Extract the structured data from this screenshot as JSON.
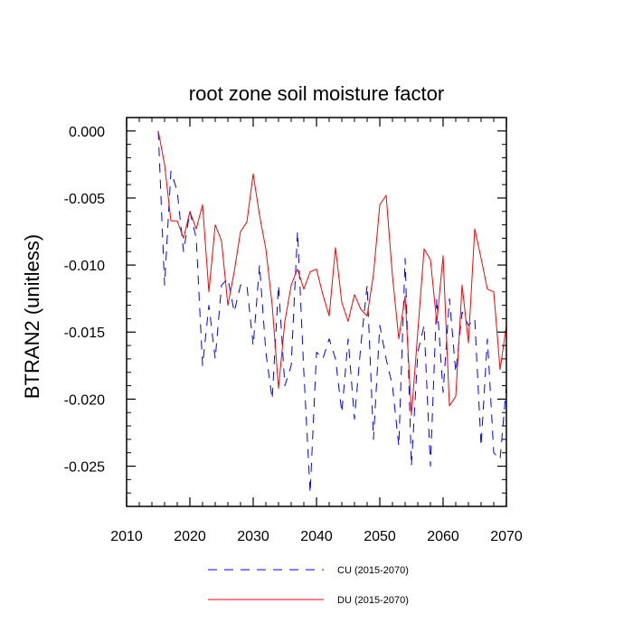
{
  "chart_data": {
    "type": "line",
    "title": "root zone soil moisture factor",
    "xlabel": "",
    "ylabel": "BTRAN2  (unitless)",
    "xlim": [
      2010,
      2070
    ],
    "ylim": [
      -0.028,
      0.001
    ],
    "xticks": [
      2010,
      2020,
      2030,
      2040,
      2050,
      2060,
      2070
    ],
    "xtick_labels": [
      "2010",
      "2020",
      "2030",
      "2040",
      "2050",
      "2060",
      "2070"
    ],
    "xminor_step": 2,
    "yticks": [
      0.0,
      -0.005,
      -0.01,
      -0.015,
      -0.02,
      -0.025
    ],
    "ytick_labels": [
      "0.000",
      "-0.005",
      "-0.010",
      "-0.015",
      "-0.020",
      "-0.025"
    ],
    "yminor_step": 0.001,
    "grid": false,
    "legend_position": "bottom-center",
    "series": [
      {
        "name": "CU (2015-2070)",
        "color": "#0000ff",
        "style": "dashed",
        "x": [
          2015,
          2016,
          2017,
          2018,
          2019,
          2020,
          2021,
          2022,
          2023,
          2024,
          2025,
          2026,
          2027,
          2028,
          2029,
          2030,
          2031,
          2032,
          2033,
          2034,
          2035,
          2036,
          2037,
          2038,
          2039,
          2040,
          2041,
          2042,
          2043,
          2044,
          2045,
          2046,
          2047,
          2048,
          2049,
          2050,
          2051,
          2052,
          2053,
          2054,
          2055,
          2056,
          2057,
          2058,
          2059,
          2060,
          2061,
          2062,
          2063,
          2064,
          2065,
          2066,
          2067,
          2068,
          2069,
          2070
        ],
        "values": [
          0.0,
          -0.0115,
          -0.003,
          -0.0045,
          -0.009,
          -0.006,
          -0.008,
          -0.0175,
          -0.013,
          -0.017,
          -0.0115,
          -0.011,
          -0.0135,
          -0.0115,
          -0.0115,
          -0.016,
          -0.01,
          -0.0165,
          -0.02,
          -0.0115,
          -0.019,
          -0.0175,
          -0.0075,
          -0.018,
          -0.027,
          -0.0165,
          -0.017,
          -0.0155,
          -0.017,
          -0.021,
          -0.0155,
          -0.0215,
          -0.016,
          -0.0115,
          -0.023,
          -0.0145,
          -0.017,
          -0.019,
          -0.0235,
          -0.0095,
          -0.025,
          -0.0165,
          -0.0145,
          -0.025,
          -0.0125,
          -0.0195,
          -0.0125,
          -0.018,
          -0.0135,
          -0.0145,
          -0.014,
          -0.0235,
          -0.0155,
          -0.024,
          -0.0245,
          -0.019
        ]
      },
      {
        "name": "DU (2015-2070)",
        "color": "#ff0000",
        "style": "solid",
        "x": [
          2015,
          2016,
          2017,
          2018,
          2019,
          2020,
          2021,
          2022,
          2023,
          2024,
          2025,
          2026,
          2027,
          2028,
          2029,
          2030,
          2031,
          2032,
          2033,
          2034,
          2035,
          2036,
          2037,
          2038,
          2039,
          2040,
          2041,
          2042,
          2043,
          2044,
          2045,
          2046,
          2047,
          2048,
          2049,
          2050,
          2051,
          2052,
          2053,
          2054,
          2055,
          2056,
          2057,
          2058,
          2059,
          2060,
          2061,
          2062,
          2063,
          2064,
          2065,
          2066,
          2067,
          2068,
          2069,
          2070
        ],
        "values": [
          0.0,
          -0.0025,
          -0.0067,
          -0.0067,
          -0.008,
          -0.006,
          -0.0073,
          -0.0055,
          -0.012,
          -0.007,
          -0.0082,
          -0.013,
          -0.0105,
          -0.0075,
          -0.0068,
          -0.0032,
          -0.0063,
          -0.0088,
          -0.013,
          -0.0192,
          -0.0142,
          -0.0115,
          -0.0103,
          -0.0118,
          -0.0105,
          -0.0103,
          -0.0122,
          -0.0138,
          -0.0087,
          -0.0128,
          -0.0142,
          -0.0122,
          -0.0133,
          -0.0138,
          -0.0107,
          -0.0055,
          -0.0048,
          -0.0108,
          -0.0155,
          -0.0123,
          -0.0212,
          -0.015,
          -0.0088,
          -0.0096,
          -0.0143,
          -0.0093,
          -0.0205,
          -0.0198,
          -0.0115,
          -0.0158,
          -0.0073,
          -0.0095,
          -0.0118,
          -0.012,
          -0.0178,
          -0.0145
        ]
      }
    ]
  }
}
